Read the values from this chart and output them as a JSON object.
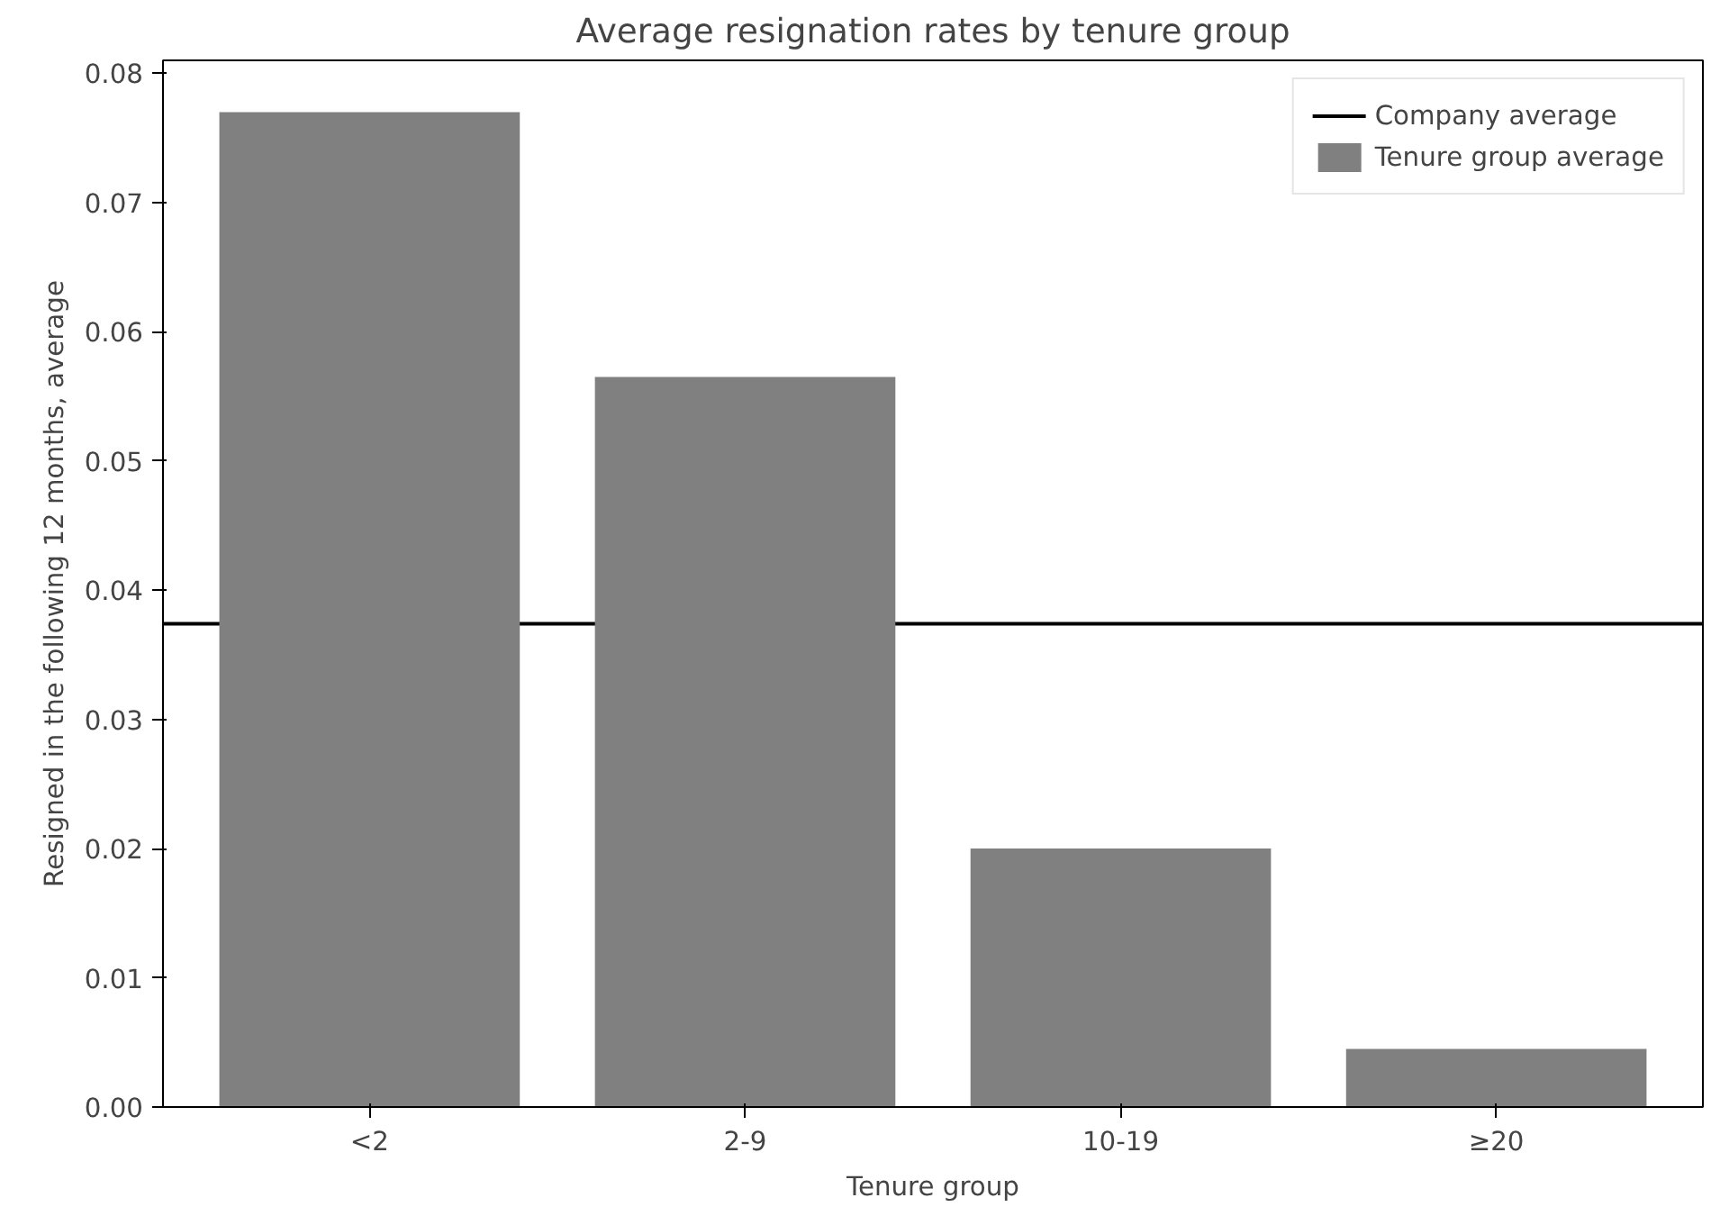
{
  "chart_data": {
    "type": "bar",
    "title": "Average resignation rates by tenure group",
    "xlabel": "Tenure group",
    "ylabel": "Resigned in the following 12 months, average",
    "categories": [
      "<2",
      "2-9",
      "10-19",
      "≥20"
    ],
    "series": [
      {
        "name": "Tenure group average",
        "color": "#808080",
        "values": [
          0.077,
          0.0565,
          0.02,
          0.0045
        ]
      }
    ],
    "ref_lines": [
      {
        "axis": "y",
        "value": 0.0374,
        "label": "Company average",
        "color": "#000000",
        "line_style": "solid"
      }
    ],
    "ylim": [
      0,
      0.081
    ],
    "yticks": [
      {
        "value": 0,
        "label": "0.00"
      },
      {
        "value": 0.01,
        "label": "0.01"
      },
      {
        "value": 0.02,
        "label": "0.02"
      },
      {
        "value": 0.03,
        "label": "0.03"
      },
      {
        "value": 0.04,
        "label": "0.04"
      },
      {
        "value": 0.05,
        "label": "0.05"
      },
      {
        "value": 0.06,
        "label": "0.06"
      },
      {
        "value": 0.07,
        "label": "0.07"
      },
      {
        "value": 0.08,
        "label": "0.08"
      }
    ],
    "grid": false,
    "legend": "top right"
  }
}
